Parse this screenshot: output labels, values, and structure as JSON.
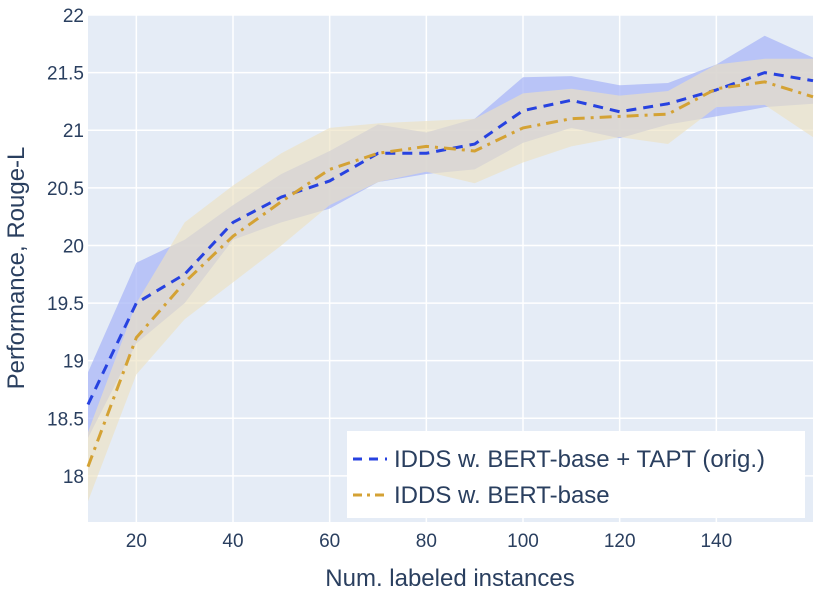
{
  "chart_data": {
    "type": "line",
    "title": "",
    "xlabel": "Num. labeled instances",
    "ylabel": "Performance, Rouge-L",
    "xlim": [
      10,
      160
    ],
    "ylim": [
      17.6,
      22
    ],
    "x_ticks": [
      20,
      40,
      60,
      80,
      100,
      120,
      140
    ],
    "y_ticks": [
      18,
      18.5,
      19,
      19.5,
      20,
      20.5,
      21,
      21.5,
      22
    ],
    "x_tick_labels": [
      "20",
      "40",
      "60",
      "80",
      "100",
      "120",
      "140"
    ],
    "y_tick_labels": [
      "18",
      "18.5",
      "19",
      "19.5",
      "20",
      "20.5",
      "21",
      "21.5",
      "22"
    ],
    "legend_position": "bottom-right",
    "x": [
      10,
      20,
      30,
      40,
      50,
      60,
      70,
      80,
      90,
      100,
      110,
      120,
      130,
      140,
      150,
      160
    ],
    "series": [
      {
        "name": "IDDS w. BERT-base + TAPT (orig.)",
        "dash": "dash",
        "color": "#2742e0",
        "band_color": "#a9b7f7",
        "values": [
          18.62,
          19.5,
          19.75,
          20.2,
          20.42,
          20.56,
          20.8,
          20.8,
          20.88,
          21.17,
          21.26,
          21.16,
          21.23,
          21.35,
          21.5,
          21.43
        ],
        "upper": [
          18.9,
          19.85,
          20.05,
          20.35,
          20.62,
          20.82,
          21.05,
          20.98,
          21.1,
          21.46,
          21.47,
          21.39,
          21.41,
          21.57,
          21.82,
          21.63
        ],
        "lower": [
          18.33,
          19.15,
          19.5,
          20.05,
          20.2,
          20.32,
          20.55,
          20.62,
          20.66,
          20.89,
          21.02,
          20.93,
          21.05,
          21.12,
          21.2,
          21.23
        ]
      },
      {
        "name": "IDDS w. BERT-base",
        "dash": "dashdot",
        "color": "#d4a234",
        "band_color": "#ece2c2",
        "values": [
          18.08,
          19.2,
          19.68,
          20.08,
          20.38,
          20.66,
          20.8,
          20.86,
          20.82,
          21.02,
          21.1,
          21.12,
          21.14,
          21.36,
          21.42,
          21.29
        ],
        "upper": [
          18.38,
          19.5,
          20.2,
          20.52,
          20.8,
          21.02,
          21.06,
          21.08,
          21.1,
          21.32,
          21.36,
          21.3,
          21.34,
          21.57,
          21.62,
          21.62
        ],
        "lower": [
          17.78,
          18.88,
          19.36,
          19.68,
          20.0,
          20.35,
          20.55,
          20.64,
          20.54,
          20.72,
          20.86,
          20.94,
          20.88,
          21.2,
          21.22,
          20.94
        ]
      }
    ]
  }
}
